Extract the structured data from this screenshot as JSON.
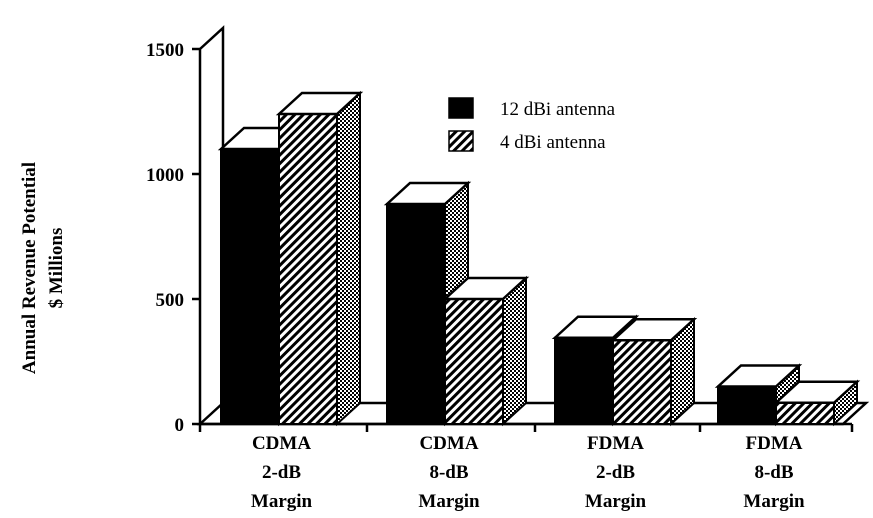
{
  "chart_data": {
    "type": "bar",
    "style": "3d-grouped",
    "ylabel": [
      "Annual Revenue Potential",
      "$ Millions"
    ],
    "ylim": [
      0,
      1500
    ],
    "yticks": [
      0,
      500,
      1000,
      1500
    ],
    "grid": false,
    "legend_position": "top-right",
    "categories": [
      [
        "CDMA",
        "2-dB",
        "Margin"
      ],
      [
        "CDMA",
        "8-dB",
        "Margin"
      ],
      [
        "FDMA",
        "2-dB",
        "Margin"
      ],
      [
        "FDMA",
        "8-dB",
        "Margin"
      ]
    ],
    "series": [
      {
        "name": "12 dBi antenna",
        "fill": "solid-black",
        "values": [
          1100,
          880,
          345,
          150
        ]
      },
      {
        "name": "4 dBi antenna",
        "fill": "diagonal-hatch",
        "values": [
          1240,
          500,
          335,
          85
        ]
      }
    ]
  }
}
